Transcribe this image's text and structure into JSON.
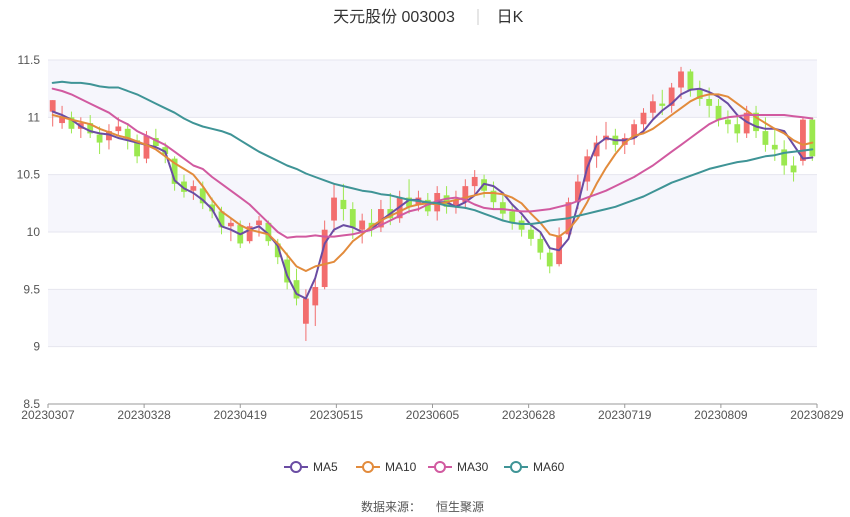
{
  "chart_data": {
    "type": "candlestick",
    "title": "天元股份 003003",
    "period_label": "日K",
    "source_label": "数据来源：",
    "source_name": "恒生聚源",
    "y_axis": {
      "min": 8.5,
      "max": 11.5,
      "ticks": [
        "11.5",
        "11",
        "10.5",
        "10",
        "9.5",
        "9",
        "8.5"
      ]
    },
    "x_axis": {
      "ticks": [
        "20230307",
        "20230328",
        "20230419",
        "20230515",
        "20230605",
        "20230628",
        "20230719",
        "20230809",
        "20230829"
      ]
    },
    "colors": {
      "up": "#f26d6d",
      "down": "#9be84f",
      "grid": "#e6e6ef",
      "band": "#f6f6fc"
    },
    "series": [
      {
        "name": "MA5",
        "color": "#6a4ca3",
        "values": [
          11.05,
          11.02,
          10.98,
          10.92,
          10.88,
          10.86,
          10.85,
          10.82,
          10.8,
          10.78,
          10.76,
          10.74,
          10.7,
          10.45,
          10.38,
          10.34,
          10.28,
          10.2,
          10.05,
          10.02,
          9.98,
          10.02,
          10.05,
          9.98,
          9.88,
          9.62,
          9.46,
          9.42,
          9.6,
          9.9,
          10.02,
          10.06,
          10.04,
          10.0,
          10.02,
          10.1,
          10.16,
          10.22,
          10.28,
          10.28,
          10.24,
          10.26,
          10.26,
          10.22,
          10.26,
          10.32,
          10.42,
          10.4,
          10.34,
          10.24,
          10.16,
          10.06,
          10.0,
          9.86,
          9.84,
          9.94,
          10.24,
          10.56,
          10.76,
          10.82,
          10.8,
          10.8,
          10.82,
          10.88,
          10.98,
          11.06,
          11.12,
          11.2,
          11.24,
          11.25,
          11.22,
          11.18,
          11.12,
          11.02,
          10.96,
          10.92,
          10.9,
          10.9,
          10.88,
          10.76,
          10.64,
          10.65
        ]
      },
      {
        "name": "MA10",
        "color": "#e28b3c",
        "values": [
          11.02,
          11.0,
          10.98,
          10.96,
          10.94,
          10.9,
          10.87,
          10.84,
          10.82,
          10.79,
          10.76,
          10.72,
          10.66,
          10.6,
          10.55,
          10.5,
          10.4,
          10.28,
          10.18,
          10.12,
          10.06,
          10.02,
          10.0,
          9.98,
          9.9,
          9.8,
          9.7,
          9.66,
          9.7,
          9.72,
          9.74,
          9.82,
          9.92,
          9.98,
          10.05,
          10.1,
          10.14,
          10.18,
          10.22,
          10.24,
          10.25,
          10.24,
          10.26,
          10.28,
          10.3,
          10.32,
          10.34,
          10.34,
          10.33,
          10.3,
          10.25,
          10.16,
          10.08,
          9.98,
          9.96,
          10.02,
          10.12,
          10.26,
          10.42,
          10.56,
          10.68,
          10.78,
          10.84,
          10.86,
          10.9,
          10.96,
          11.02,
          11.08,
          11.14,
          11.18,
          11.2,
          11.2,
          11.18,
          11.12,
          11.06,
          11.0,
          10.95,
          10.9,
          10.86,
          10.8,
          10.76,
          10.78
        ]
      },
      {
        "name": "MA30",
        "color": "#d15aa0",
        "values": [
          11.25,
          11.23,
          11.2,
          11.16,
          11.12,
          11.08,
          11.04,
          10.98,
          10.94,
          10.88,
          10.84,
          10.8,
          10.76,
          10.7,
          10.64,
          10.58,
          10.55,
          10.48,
          10.42,
          10.36,
          10.3,
          10.24,
          10.16,
          10.08,
          10.0,
          9.95,
          9.96,
          9.96,
          9.97,
          9.96,
          9.96,
          9.97,
          9.98,
          10.0,
          10.02,
          10.06,
          10.1,
          10.14,
          10.18,
          10.2,
          10.24,
          10.27,
          10.29,
          10.3,
          10.28,
          10.24,
          10.21,
          10.2,
          10.2,
          10.19,
          10.18,
          10.18,
          10.19,
          10.2,
          10.22,
          10.24,
          10.27,
          10.3,
          10.33,
          10.36,
          10.4,
          10.44,
          10.48,
          10.53,
          10.58,
          10.64,
          10.7,
          10.76,
          10.82,
          10.88,
          10.94,
          10.98,
          11.0,
          11.01,
          11.02,
          11.02,
          11.02,
          11.02,
          11.02,
          11.01,
          11.0,
          10.99
        ]
      },
      {
        "name": "MA60",
        "color": "#3f9496",
        "values": [
          11.3,
          11.31,
          11.3,
          11.3,
          11.29,
          11.27,
          11.26,
          11.26,
          11.23,
          11.2,
          11.16,
          11.12,
          11.08,
          11.04,
          10.99,
          10.95,
          10.92,
          10.9,
          10.88,
          10.85,
          10.8,
          10.75,
          10.7,
          10.66,
          10.62,
          10.58,
          10.55,
          10.51,
          10.48,
          10.45,
          10.42,
          10.4,
          10.38,
          10.36,
          10.35,
          10.33,
          10.32,
          10.3,
          10.28,
          10.27,
          10.26,
          10.25,
          10.23,
          10.22,
          10.21,
          10.19,
          10.16,
          10.13,
          10.1,
          10.08,
          10.07,
          10.07,
          10.08,
          10.1,
          10.11,
          10.12,
          10.14,
          10.16,
          10.18,
          10.2,
          10.22,
          10.25,
          10.28,
          10.31,
          10.35,
          10.39,
          10.43,
          10.46,
          10.49,
          10.52,
          10.55,
          10.57,
          10.59,
          10.61,
          10.62,
          10.64,
          10.66,
          10.67,
          10.69,
          10.7,
          10.71,
          10.72
        ]
      }
    ],
    "candles": [
      [
        11.05,
        11.15,
        10.92,
        11.15
      ],
      [
        10.95,
        11.1,
        10.9,
        11.0
      ],
      [
        11.0,
        11.05,
        10.86,
        10.9
      ],
      [
        10.9,
        11.0,
        10.82,
        10.95
      ],
      [
        10.95,
        11.02,
        10.82,
        10.86
      ],
      [
        10.85,
        10.92,
        10.68,
        10.78
      ],
      [
        10.8,
        10.94,
        10.72,
        10.88
      ],
      [
        10.88,
        11.0,
        10.84,
        10.92
      ],
      [
        10.9,
        10.95,
        10.72,
        10.8
      ],
      [
        10.8,
        10.85,
        10.6,
        10.66
      ],
      [
        10.64,
        10.88,
        10.6,
        10.84
      ],
      [
        10.82,
        10.9,
        10.72,
        10.75
      ],
      [
        10.74,
        10.78,
        10.6,
        10.68
      ],
      [
        10.64,
        10.66,
        10.36,
        10.42
      ],
      [
        10.44,
        10.5,
        10.3,
        10.35
      ],
      [
        10.36,
        10.45,
        10.28,
        10.4
      ],
      [
        10.38,
        10.44,
        10.2,
        10.25
      ],
      [
        10.24,
        10.3,
        10.12,
        10.18
      ],
      [
        10.18,
        10.22,
        9.98,
        10.04
      ],
      [
        10.05,
        10.12,
        9.92,
        10.08
      ],
      [
        10.06,
        10.1,
        9.86,
        9.9
      ],
      [
        9.92,
        10.08,
        9.9,
        10.05
      ],
      [
        10.06,
        10.14,
        9.96,
        10.1
      ],
      [
        10.08,
        10.1,
        9.88,
        9.92
      ],
      [
        9.9,
        9.94,
        9.72,
        9.78
      ],
      [
        9.76,
        9.82,
        9.5,
        9.56
      ],
      [
        9.58,
        9.68,
        9.36,
        9.42
      ],
      [
        9.2,
        9.5,
        9.05,
        9.42
      ],
      [
        9.36,
        9.6,
        9.18,
        9.52
      ],
      [
        9.52,
        10.1,
        9.5,
        10.02
      ],
      [
        10.1,
        10.42,
        10.0,
        10.3
      ],
      [
        10.28,
        10.42,
        10.1,
        10.2
      ],
      [
        10.2,
        10.26,
        9.94,
        10.04
      ],
      [
        10.02,
        10.16,
        9.9,
        10.1
      ],
      [
        10.08,
        10.2,
        9.96,
        10.02
      ],
      [
        10.04,
        10.28,
        10.0,
        10.2
      ],
      [
        10.2,
        10.34,
        10.06,
        10.12
      ],
      [
        10.12,
        10.36,
        10.08,
        10.3
      ],
      [
        10.3,
        10.46,
        10.16,
        10.22
      ],
      [
        10.24,
        10.36,
        10.18,
        10.3
      ],
      [
        10.28,
        10.34,
        10.14,
        10.18
      ],
      [
        10.18,
        10.4,
        10.1,
        10.34
      ],
      [
        10.32,
        10.4,
        10.16,
        10.22
      ],
      [
        10.22,
        10.36,
        10.16,
        10.28
      ],
      [
        10.26,
        10.46,
        10.2,
        10.4
      ],
      [
        10.4,
        10.54,
        10.32,
        10.48
      ],
      [
        10.46,
        10.5,
        10.3,
        10.36
      ],
      [
        10.36,
        10.44,
        10.2,
        10.26
      ],
      [
        10.26,
        10.34,
        10.1,
        10.16
      ],
      [
        10.18,
        10.24,
        10.02,
        10.08
      ],
      [
        10.1,
        10.14,
        9.96,
        10.02
      ],
      [
        10.02,
        10.08,
        9.88,
        9.94
      ],
      [
        9.94,
        10.0,
        9.76,
        9.82
      ],
      [
        9.82,
        9.88,
        9.64,
        9.7
      ],
      [
        9.72,
        10.04,
        9.7,
        9.96
      ],
      [
        9.98,
        10.3,
        9.94,
        10.26
      ],
      [
        10.26,
        10.5,
        10.2,
        10.44
      ],
      [
        10.44,
        10.72,
        10.36,
        10.66
      ],
      [
        10.66,
        10.84,
        10.56,
        10.78
      ],
      [
        10.8,
        10.96,
        10.72,
        10.84
      ],
      [
        10.84,
        10.9,
        10.7,
        10.76
      ],
      [
        10.76,
        10.86,
        10.68,
        10.82
      ],
      [
        10.82,
        10.98,
        10.76,
        10.94
      ],
      [
        10.94,
        11.08,
        10.86,
        11.04
      ],
      [
        11.04,
        11.2,
        10.98,
        11.14
      ],
      [
        11.12,
        11.24,
        11.02,
        11.1
      ],
      [
        11.1,
        11.3,
        11.04,
        11.26
      ],
      [
        11.26,
        11.44,
        11.16,
        11.4
      ],
      [
        11.4,
        11.42,
        11.18,
        11.24
      ],
      [
        11.24,
        11.32,
        11.1,
        11.16
      ],
      [
        11.16,
        11.26,
        11.0,
        11.1
      ],
      [
        11.1,
        11.16,
        10.92,
        10.98
      ],
      [
        10.98,
        11.06,
        10.86,
        10.94
      ],
      [
        10.94,
        11.02,
        10.78,
        10.86
      ],
      [
        10.86,
        11.1,
        10.82,
        11.04
      ],
      [
        11.04,
        11.1,
        10.82,
        10.88
      ],
      [
        10.88,
        11.0,
        10.7,
        10.76
      ],
      [
        10.76,
        10.9,
        10.62,
        10.72
      ],
      [
        10.72,
        10.8,
        10.5,
        10.58
      ],
      [
        10.58,
        10.66,
        10.44,
        10.52
      ],
      [
        10.62,
        11.0,
        10.58,
        10.98
      ],
      [
        10.98,
        11.0,
        10.62,
        10.66
      ]
    ]
  }
}
